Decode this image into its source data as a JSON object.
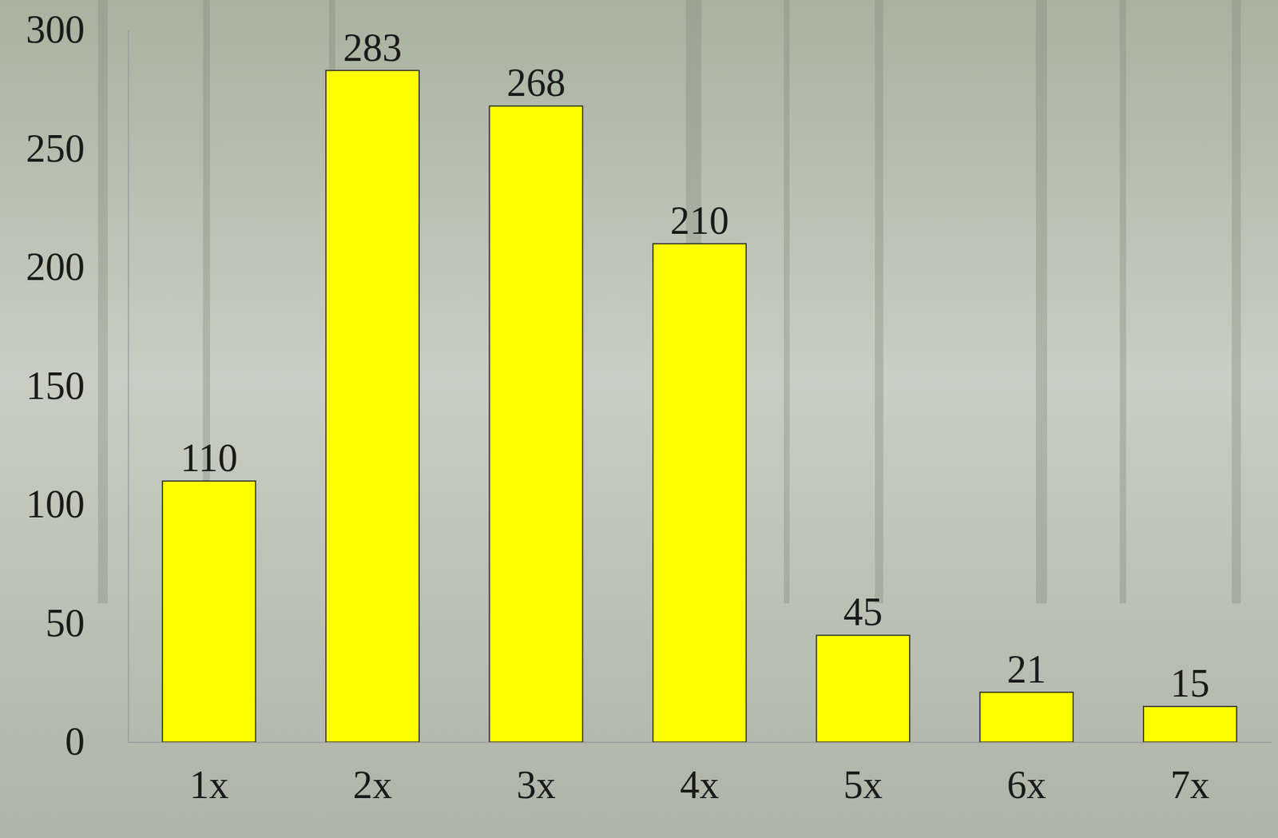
{
  "chart_data": {
    "type": "bar",
    "categories": [
      "1x",
      "2x",
      "3x",
      "4x",
      "5x",
      "6x",
      "7x"
    ],
    "values": [
      110,
      283,
      268,
      210,
      45,
      21,
      15
    ],
    "color": "#ffff00",
    "ylim": [
      0,
      300
    ],
    "yticks": [
      0,
      50,
      100,
      150,
      200,
      250,
      300
    ],
    "grid": false,
    "data_labels": true
  }
}
